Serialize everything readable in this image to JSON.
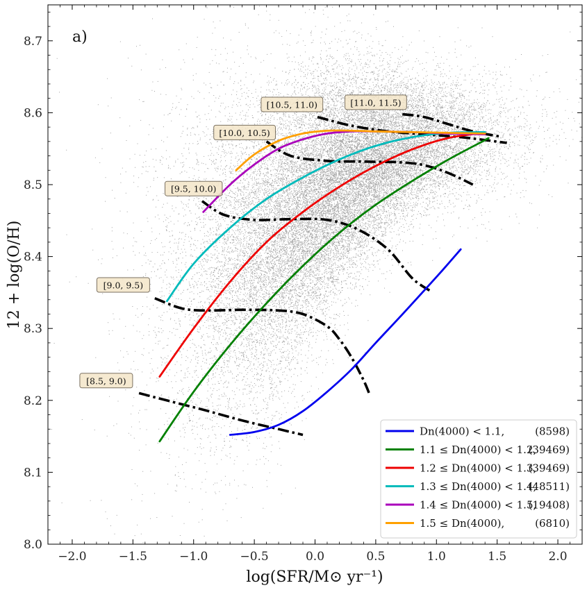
{
  "chart_data": {
    "type": "scatter",
    "panel_label": "a)",
    "xlabel": "log(SFR/M⊙ yr⁻¹)",
    "ylabel": "12 + log(O/H)",
    "xlim": [
      -2.2,
      2.2
    ],
    "ylim": [
      8.0,
      8.75
    ],
    "xticks": [
      -2.0,
      -1.5,
      -1.0,
      -0.5,
      0.0,
      0.5,
      1.0,
      1.5,
      2.0
    ],
    "xtick_labels": [
      "−2.0",
      "−1.5",
      "−1.0",
      "−0.5",
      "0.0",
      "0.5",
      "1.0",
      "1.5",
      "2.0"
    ],
    "yticks": [
      8.0,
      8.1,
      8.2,
      8.3,
      8.4,
      8.5,
      8.6,
      8.7
    ],
    "ytick_labels": [
      "8.0",
      "8.1",
      "8.2",
      "8.3",
      "8.4",
      "8.5",
      "8.6",
      "8.7"
    ],
    "scatter_color": "#808080",
    "series": [
      {
        "name": "Dn(4000) < 1.1",
        "color": "#0000ee",
        "count": "(8598)",
        "x": [
          -0.7,
          -0.5,
          -0.3,
          -0.1,
          0.1,
          0.3,
          0.5,
          0.7,
          0.9,
          1.05,
          1.2
        ],
        "y": [
          8.152,
          8.156,
          8.166,
          8.185,
          8.212,
          8.243,
          8.28,
          8.316,
          8.353,
          8.381,
          8.41
        ]
      },
      {
        "name": "1.1 ≤ Dn(4000) < 1.2",
        "color": "#008000",
        "count": "(39469)",
        "x": [
          -1.28,
          -1.0,
          -0.7,
          -0.4,
          -0.1,
          0.2,
          0.5,
          0.8,
          1.1,
          1.4,
          1.42
        ],
        "y": [
          8.143,
          8.212,
          8.277,
          8.335,
          8.387,
          8.433,
          8.472,
          8.505,
          8.535,
          8.562,
          8.564
        ]
      },
      {
        "name": "1.2 ≤ Dn(4000) < 1.3",
        "color": "#ee0000",
        "count": "(39469)",
        "x": [
          -1.28,
          -1.0,
          -0.7,
          -0.4,
          -0.1,
          0.2,
          0.5,
          0.8,
          1.1,
          1.4
        ],
        "y": [
          8.233,
          8.3,
          8.365,
          8.42,
          8.462,
          8.497,
          8.526,
          8.549,
          8.565,
          8.572
        ]
      },
      {
        "name": "1.3 ≤ Dn(4000) < 1.4",
        "color": "#00bbbb",
        "count": "(48511)",
        "x": [
          -1.22,
          -1.0,
          -0.7,
          -0.4,
          -0.1,
          0.2,
          0.5,
          0.8,
          1.1,
          1.4
        ],
        "y": [
          8.338,
          8.39,
          8.44,
          8.48,
          8.51,
          8.535,
          8.554,
          8.566,
          8.572,
          8.573
        ]
      },
      {
        "name": "1.4 ≤ Dn(4000) < 1.5",
        "color": "#aa00bb",
        "count": "(19408)",
        "x": [
          -0.92,
          -0.7,
          -0.5,
          -0.3,
          -0.1,
          0.1,
          0.3,
          0.5,
          0.8,
          1.1,
          1.4
        ],
        "y": [
          8.462,
          8.5,
          8.528,
          8.55,
          8.563,
          8.571,
          8.574,
          8.574,
          8.573,
          8.571,
          8.57
        ]
      },
      {
        "name": "1.5 ≤ Dn(4000)",
        "color": "#ffa000",
        "count": "(6810)",
        "x": [
          -0.65,
          -0.5,
          -0.3,
          -0.1,
          0.1,
          0.3,
          0.5,
          0.8,
          1.1,
          1.4
        ],
        "y": [
          8.52,
          8.542,
          8.561,
          8.571,
          8.575,
          8.575,
          8.574,
          8.573,
          8.572,
          8.571
        ]
      }
    ],
    "mass_bins": [
      {
        "label": "[8.5, 9.0)",
        "label_x": -1.72,
        "label_y": 8.227,
        "x": [
          -1.45,
          -1.2,
          -0.9,
          -0.6,
          -0.3,
          -0.1
        ],
        "y": [
          8.21,
          8.199,
          8.186,
          8.172,
          8.16,
          8.152
        ]
      },
      {
        "label": "[9.0, 9.5)",
        "label_x": -1.58,
        "label_y": 8.36,
        "x": [
          -1.32,
          -1.1,
          -0.9,
          -0.6,
          -0.3,
          -0.1,
          0.1,
          0.2,
          0.3,
          0.4,
          0.45
        ],
        "y": [
          8.342,
          8.328,
          8.325,
          8.326,
          8.325,
          8.32,
          8.303,
          8.285,
          8.26,
          8.228,
          8.208
        ]
      },
      {
        "label": "[9.5, 10.0)",
        "label_x": -1.0,
        "label_y": 8.494,
        "x": [
          -0.93,
          -0.75,
          -0.5,
          -0.2,
          0.1,
          0.35,
          0.6,
          0.8,
          0.95
        ],
        "y": [
          8.477,
          8.458,
          8.451,
          8.452,
          8.451,
          8.438,
          8.41,
          8.37,
          8.352
        ]
      },
      {
        "label": "[10.0, 10.5)",
        "label_x": -0.58,
        "label_y": 8.572,
        "x": [
          -0.4,
          -0.2,
          0.1,
          0.4,
          0.7,
          0.9,
          1.1,
          1.3
        ],
        "y": [
          8.56,
          8.54,
          8.533,
          8.532,
          8.531,
          8.527,
          8.516,
          8.5
        ]
      },
      {
        "label": "[10.5, 11.0)",
        "label_x": -0.19,
        "label_y": 8.611,
        "x": [
          0.02,
          0.3,
          0.6,
          0.9,
          1.2,
          1.4,
          1.58
        ],
        "y": [
          8.594,
          8.582,
          8.574,
          8.57,
          8.566,
          8.562,
          8.558
        ]
      },
      {
        "label": "[11.0, 11.5)",
        "label_x": 0.5,
        "label_y": 8.614,
        "x": [
          0.72,
          0.9,
          1.1,
          1.3,
          1.52
        ],
        "y": [
          8.598,
          8.594,
          8.584,
          8.574,
          8.567
        ]
      }
    ]
  }
}
